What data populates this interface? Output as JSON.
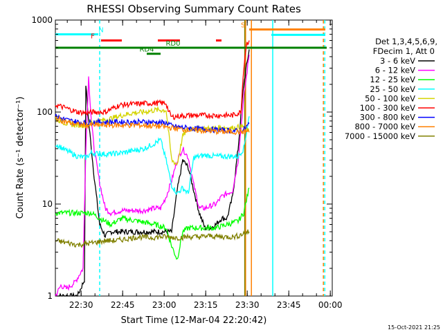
{
  "title": "RHESSI Observing Summary Count Rates",
  "xlabel": "Start Time (12-Mar-04 22:20:42)",
  "ylabel": "Count Rate (s⁻¹ detector⁻¹)",
  "generated": "15-Oct-2021 21:25",
  "legend_header": [
    "Det 1,3,4,5,6,9,",
    "FDecim 1, Att 0"
  ],
  "chart_data": {
    "type": "line",
    "x_ticks": [
      "22:30",
      "22:45",
      "23:00",
      "23:15",
      "23:30",
      "23:45",
      "00:00"
    ],
    "y_ticks": [
      "1",
      "10",
      "100",
      "1000"
    ],
    "ylim": [
      1,
      1000
    ],
    "yscale": "log",
    "xlim_minutes": [
      0,
      100
    ],
    "x_tick_minutes": [
      9.3,
      24.3,
      39.3,
      54.3,
      69.3,
      84.3,
      99.3
    ],
    "series": [
      {
        "name": "3 - 6 keV",
        "color": "#000000",
        "x": [
          0,
          8,
          10.5,
          11,
          12,
          14,
          16,
          18,
          20,
          24,
          28,
          32,
          36,
          38,
          40,
          42,
          44,
          46,
          48,
          50,
          52,
          54,
          56,
          58,
          60,
          62,
          64,
          66,
          68,
          70
        ],
        "y": [
          1,
          1,
          1.5,
          200,
          80,
          20,
          6,
          4.5,
          5,
          5,
          5,
          5,
          5,
          5,
          5,
          5,
          14,
          30,
          25,
          14,
          8,
          5.5,
          5.5,
          6,
          7,
          7,
          12,
          40,
          200,
          480
        ]
      },
      {
        "name": "6 - 12 keV",
        "color": "#ff00ff",
        "x": [
          0,
          2,
          4,
          7,
          10,
          11,
          12,
          13,
          14,
          16,
          18,
          20,
          24,
          28,
          32,
          36,
          38,
          40,
          42,
          44,
          46,
          48,
          50,
          52,
          54,
          56,
          58,
          60,
          62,
          64,
          66,
          68,
          70
        ],
        "y": [
          1,
          1.3,
          1.2,
          1.4,
          2,
          40,
          240,
          80,
          40,
          17,
          9,
          8,
          8.5,
          8.5,
          8.5,
          9,
          9,
          12,
          18,
          30,
          40,
          32,
          16,
          9,
          9,
          9.5,
          10,
          12,
          13,
          14,
          30,
          140,
          420
        ]
      },
      {
        "name": "12 - 25 keV",
        "color": "#00ff00",
        "x": [
          0,
          4,
          8,
          11,
          13,
          16,
          20,
          24,
          30,
          36,
          40,
          42,
          44,
          46,
          48,
          50,
          54,
          58,
          62,
          66,
          68,
          70
        ],
        "y": [
          8,
          8,
          8,
          8,
          8,
          7,
          6,
          7,
          6.5,
          6,
          5.5,
          3.5,
          2.5,
          5,
          5.5,
          5.5,
          5.5,
          5.5,
          6,
          6.5,
          8,
          15
        ]
      },
      {
        "name": "25 - 50 keV",
        "color": "#00ffff",
        "x": [
          0,
          4,
          8,
          11,
          13,
          16,
          20,
          24,
          28,
          32,
          36,
          38,
          40,
          42,
          44,
          46,
          48,
          50,
          54,
          58,
          62,
          66,
          68,
          70
        ],
        "y": [
          45,
          38,
          33,
          32,
          36,
          35,
          35,
          36,
          38,
          40,
          46,
          50,
          30,
          16,
          13,
          15,
          13,
          32,
          34,
          33,
          33,
          33,
          40,
          90
        ]
      },
      {
        "name": "50 - 100 keV",
        "color": "#d4d400",
        "x": [
          0,
          4,
          8,
          11,
          13,
          16,
          20,
          24,
          28,
          32,
          36,
          40,
          42,
          44,
          46,
          48,
          50,
          52,
          56,
          60,
          64,
          68,
          70
        ],
        "y": [
          85,
          75,
          72,
          72,
          78,
          80,
          85,
          92,
          98,
          100,
          105,
          105,
          30,
          27,
          55,
          66,
          66,
          66,
          66,
          68,
          67,
          70,
          60
        ]
      },
      {
        "name": "100 - 300 keV",
        "color": "#ff0000",
        "x": [
          0,
          4,
          8,
          11,
          14,
          18,
          22,
          24,
          28,
          32,
          36,
          40,
          41,
          42,
          44,
          48,
          52,
          56,
          60,
          64,
          67,
          68,
          69,
          70
        ],
        "y": [
          120,
          110,
          100,
          98,
          100,
          100,
          115,
          120,
          122,
          124,
          125,
          125,
          100,
          88,
          90,
          92,
          92,
          92,
          92,
          92,
          100,
          300,
          550,
          600
        ]
      },
      {
        "name": "300 - 800 keV",
        "color": "#0000ff",
        "x": [
          0,
          4,
          8,
          11,
          14,
          18,
          22,
          26,
          30,
          34,
          38,
          41,
          42,
          46,
          50,
          54,
          58,
          62,
          66,
          68,
          70
        ],
        "y": [
          90,
          82,
          78,
          76,
          78,
          78,
          78,
          78,
          78,
          78,
          77,
          75,
          70,
          68,
          66,
          65,
          64,
          63,
          62,
          64,
          75
        ]
      },
      {
        "name": "800 - 7000 keV",
        "color": "#ff8000",
        "x": [
          0,
          4,
          8,
          11,
          14,
          18,
          22,
          26,
          30,
          34,
          38,
          41,
          44,
          48,
          52,
          56,
          60,
          64,
          68,
          70
        ],
        "y": [
          86,
          78,
          73,
          72,
          72,
          72,
          72,
          72,
          72,
          71,
          70,
          68,
          66,
          64,
          63,
          62,
          61,
          61,
          61,
          62
        ]
      },
      {
        "name": "7000 - 15000 keV",
        "color": "#808000",
        "x": [
          0,
          4,
          8,
          11,
          14,
          18,
          22,
          26,
          30,
          34,
          38,
          40,
          44,
          48,
          52,
          56,
          60,
          64,
          66,
          68,
          70
        ],
        "y": [
          4,
          3.8,
          3.6,
          3.7,
          3.8,
          4,
          4,
          4.2,
          4.4,
          4.3,
          4.4,
          4.4,
          4.3,
          4.4,
          4.4,
          4.5,
          4.4,
          4.4,
          4.5,
          4.8,
          5
        ]
      }
    ],
    "flag_bars": [
      {
        "label": "N",
        "label_color": "#00ffff",
        "label_at": 16.5,
        "color": "#00ffff",
        "y_level": 700,
        "segments": [
          [
            0,
            15.5
          ]
        ]
      },
      {
        "label": "F",
        "label_color": "#ff0000",
        "label_at": 13.5,
        "color": "#ff0000",
        "y_level": 600,
        "segments": [
          [
            16.5,
            24
          ],
          [
            37,
            45
          ],
          [
            58,
            60
          ]
        ]
      },
      {
        "label": "RD0",
        "label_color": "#008000",
        "label_at": 42.5,
        "color": "#008000",
        "y_level": 500,
        "segments": [
          [
            0,
            98
          ]
        ]
      },
      {
        "label": "RD4",
        "label_color": "#008000",
        "label_at": 33,
        "color": "#008000",
        "y_level": 430,
        "segments": [
          [
            33,
            38
          ]
        ]
      },
      {
        "label": "S",
        "label_color": "#ff8000",
        "label_at": 67.8,
        "color": "#ff8000",
        "y_level": 790,
        "segments": [
          [
            70,
            97.5
          ]
        ]
      },
      {
        "label": "",
        "label_color": "#00ffff",
        "label_at": 0,
        "color": "#00ffff",
        "y_level": 690,
        "segments": [
          [
            78,
            97.5
          ]
        ]
      }
    ],
    "vlines": [
      {
        "x": 16,
        "color": "#00ffff",
        "dashed": true
      },
      {
        "x": 68.7,
        "color": "#ff8000",
        "dashed": false
      },
      {
        "x": 70.8,
        "color": "#ff8000",
        "dashed": false
      },
      {
        "x": 68.4,
        "color": "#808000",
        "dashed": false
      },
      {
        "x": 78.5,
        "color": "#00ffff",
        "dashed": false
      },
      {
        "x": 96.8,
        "color": "#ff8000",
        "dashed": true
      },
      {
        "x": 97.3,
        "color": "#00ffff",
        "dashed": true
      }
    ]
  }
}
